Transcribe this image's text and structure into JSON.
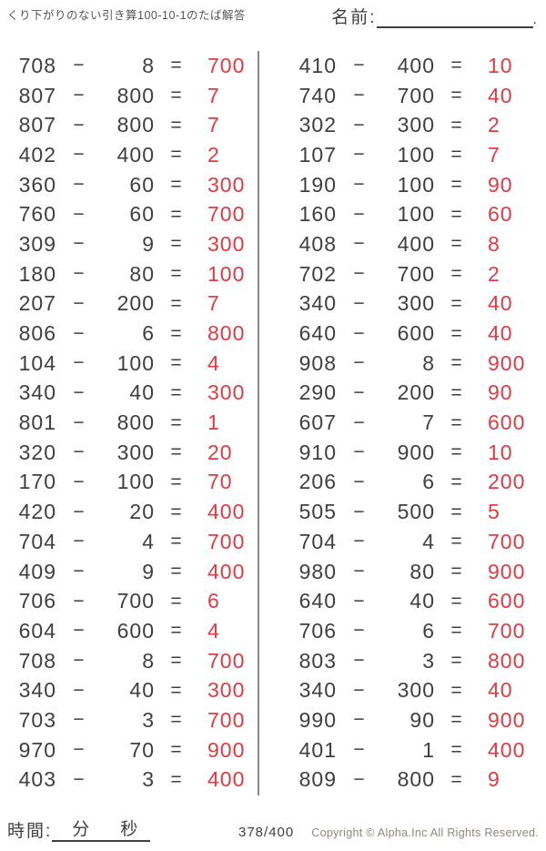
{
  "header": {
    "title": "くり下がりのない引き算100-10-1のたば解答",
    "name_label": "名前:",
    "name_suffix": "."
  },
  "symbols": {
    "minus": "−",
    "equals": "="
  },
  "colors": {
    "answer_red": "#e8383f",
    "text": "#3f3f3f",
    "divider": "#8a8a8a",
    "muted": "#8d867d"
  },
  "problems": {
    "left": [
      {
        "minuend": "708",
        "subtrahend": "8",
        "answer": "700"
      },
      {
        "minuend": "807",
        "subtrahend": "800",
        "answer": "7"
      },
      {
        "minuend": "807",
        "subtrahend": "800",
        "answer": "7"
      },
      {
        "minuend": "402",
        "subtrahend": "400",
        "answer": "2"
      },
      {
        "minuend": "360",
        "subtrahend": "60",
        "answer": "300"
      },
      {
        "minuend": "760",
        "subtrahend": "60",
        "answer": "700"
      },
      {
        "minuend": "309",
        "subtrahend": "9",
        "answer": "300"
      },
      {
        "minuend": "180",
        "subtrahend": "80",
        "answer": "100"
      },
      {
        "minuend": "207",
        "subtrahend": "200",
        "answer": "7"
      },
      {
        "minuend": "806",
        "subtrahend": "6",
        "answer": "800"
      },
      {
        "minuend": "104",
        "subtrahend": "100",
        "answer": "4"
      },
      {
        "minuend": "340",
        "subtrahend": "40",
        "answer": "300"
      },
      {
        "minuend": "801",
        "subtrahend": "800",
        "answer": "1"
      },
      {
        "minuend": "320",
        "subtrahend": "300",
        "answer": "20"
      },
      {
        "minuend": "170",
        "subtrahend": "100",
        "answer": "70"
      },
      {
        "minuend": "420",
        "subtrahend": "20",
        "answer": "400"
      },
      {
        "minuend": "704",
        "subtrahend": "4",
        "answer": "700"
      },
      {
        "minuend": "409",
        "subtrahend": "9",
        "answer": "400"
      },
      {
        "minuend": "706",
        "subtrahend": "700",
        "answer": "6"
      },
      {
        "minuend": "604",
        "subtrahend": "600",
        "answer": "4"
      },
      {
        "minuend": "708",
        "subtrahend": "8",
        "answer": "700"
      },
      {
        "minuend": "340",
        "subtrahend": "40",
        "answer": "300"
      },
      {
        "minuend": "703",
        "subtrahend": "3",
        "answer": "700"
      },
      {
        "minuend": "970",
        "subtrahend": "70",
        "answer": "900"
      },
      {
        "minuend": "403",
        "subtrahend": "3",
        "answer": "400"
      }
    ],
    "right": [
      {
        "minuend": "410",
        "subtrahend": "400",
        "answer": "10"
      },
      {
        "minuend": "740",
        "subtrahend": "700",
        "answer": "40"
      },
      {
        "minuend": "302",
        "subtrahend": "300",
        "answer": "2"
      },
      {
        "minuend": "107",
        "subtrahend": "100",
        "answer": "7"
      },
      {
        "minuend": "190",
        "subtrahend": "100",
        "answer": "90"
      },
      {
        "minuend": "160",
        "subtrahend": "100",
        "answer": "60"
      },
      {
        "minuend": "408",
        "subtrahend": "400",
        "answer": "8"
      },
      {
        "minuend": "702",
        "subtrahend": "700",
        "answer": "2"
      },
      {
        "minuend": "340",
        "subtrahend": "300",
        "answer": "40"
      },
      {
        "minuend": "640",
        "subtrahend": "600",
        "answer": "40"
      },
      {
        "minuend": "908",
        "subtrahend": "8",
        "answer": "900"
      },
      {
        "minuend": "290",
        "subtrahend": "200",
        "answer": "90"
      },
      {
        "minuend": "607",
        "subtrahend": "7",
        "answer": "600"
      },
      {
        "minuend": "910",
        "subtrahend": "900",
        "answer": "10"
      },
      {
        "minuend": "206",
        "subtrahend": "6",
        "answer": "200"
      },
      {
        "minuend": "505",
        "subtrahend": "500",
        "answer": "5"
      },
      {
        "minuend": "704",
        "subtrahend": "4",
        "answer": "700"
      },
      {
        "minuend": "980",
        "subtrahend": "80",
        "answer": "900"
      },
      {
        "minuend": "640",
        "subtrahend": "40",
        "answer": "600"
      },
      {
        "minuend": "706",
        "subtrahend": "6",
        "answer": "700"
      },
      {
        "minuend": "803",
        "subtrahend": "3",
        "answer": "800"
      },
      {
        "minuend": "340",
        "subtrahend": "300",
        "answer": "40"
      },
      {
        "minuend": "990",
        "subtrahend": "90",
        "answer": "900"
      },
      {
        "minuend": "401",
        "subtrahend": "1",
        "answer": "400"
      },
      {
        "minuend": "809",
        "subtrahend": "800",
        "answer": "9"
      }
    ]
  },
  "footer": {
    "time_label": "時間:",
    "minutes_label": "分",
    "seconds_label": "秒",
    "page": "378/400",
    "copyright": "Copyright ©  Alpha.Inc All Rights Reserved."
  }
}
